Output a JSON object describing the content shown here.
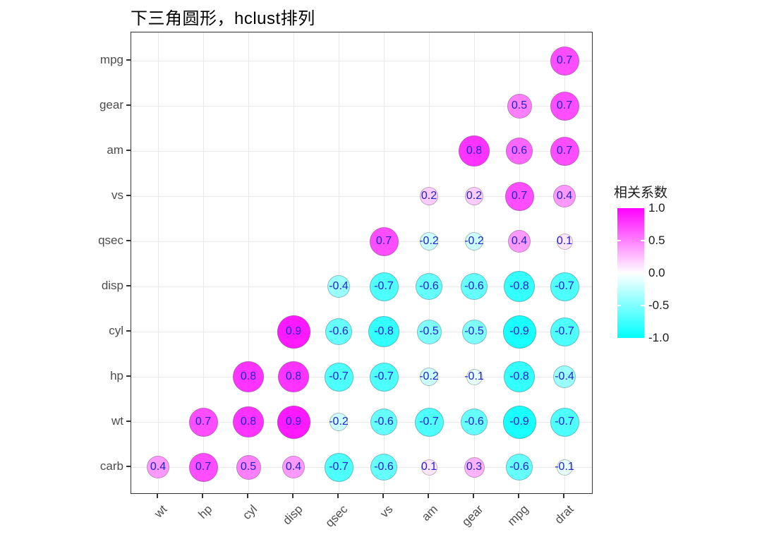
{
  "title": "下三角圆形，hclust排列",
  "chart_data": {
    "type": "heatmap",
    "subtype": "lower-triangle-correlation-circles",
    "title": "下三角圆形，hclust排列",
    "order_method": "hclust",
    "x_categories": [
      "wt",
      "hp",
      "cyl",
      "disp",
      "qsec",
      "vs",
      "am",
      "gear",
      "mpg",
      "drat"
    ],
    "y_categories": [
      "mpg",
      "gear",
      "am",
      "vs",
      "qsec",
      "disp",
      "cyl",
      "hp",
      "wt",
      "carb"
    ],
    "value_range": [
      -1,
      1
    ],
    "grid": true,
    "label_color": "#2222CC",
    "axis_text_color": "#4d4d4d",
    "cells": [
      {
        "row": "mpg",
        "col": "drat",
        "v": 0.7
      },
      {
        "row": "gear",
        "col": "mpg",
        "v": 0.5
      },
      {
        "row": "gear",
        "col": "drat",
        "v": 0.7
      },
      {
        "row": "am",
        "col": "gear",
        "v": 0.8
      },
      {
        "row": "am",
        "col": "mpg",
        "v": 0.6
      },
      {
        "row": "am",
        "col": "drat",
        "v": 0.7
      },
      {
        "row": "vs",
        "col": "am",
        "v": 0.2
      },
      {
        "row": "vs",
        "col": "gear",
        "v": 0.2
      },
      {
        "row": "vs",
        "col": "mpg",
        "v": 0.7
      },
      {
        "row": "vs",
        "col": "drat",
        "v": 0.4
      },
      {
        "row": "qsec",
        "col": "vs",
        "v": 0.7
      },
      {
        "row": "qsec",
        "col": "am",
        "v": -0.2
      },
      {
        "row": "qsec",
        "col": "gear",
        "v": -0.2
      },
      {
        "row": "qsec",
        "col": "mpg",
        "v": 0.4
      },
      {
        "row": "qsec",
        "col": "drat",
        "v": 0.1
      },
      {
        "row": "disp",
        "col": "qsec",
        "v": -0.4
      },
      {
        "row": "disp",
        "col": "vs",
        "v": -0.7
      },
      {
        "row": "disp",
        "col": "am",
        "v": -0.6
      },
      {
        "row": "disp",
        "col": "gear",
        "v": -0.6
      },
      {
        "row": "disp",
        "col": "mpg",
        "v": -0.8
      },
      {
        "row": "disp",
        "col": "drat",
        "v": -0.7
      },
      {
        "row": "cyl",
        "col": "disp",
        "v": 0.9
      },
      {
        "row": "cyl",
        "col": "qsec",
        "v": -0.6
      },
      {
        "row": "cyl",
        "col": "vs",
        "v": -0.8
      },
      {
        "row": "cyl",
        "col": "am",
        "v": -0.5
      },
      {
        "row": "cyl",
        "col": "gear",
        "v": -0.5
      },
      {
        "row": "cyl",
        "col": "mpg",
        "v": -0.9
      },
      {
        "row": "cyl",
        "col": "drat",
        "v": -0.7
      },
      {
        "row": "hp",
        "col": "cyl",
        "v": 0.8
      },
      {
        "row": "hp",
        "col": "disp",
        "v": 0.8
      },
      {
        "row": "hp",
        "col": "qsec",
        "v": -0.7
      },
      {
        "row": "hp",
        "col": "vs",
        "v": -0.7
      },
      {
        "row": "hp",
        "col": "am",
        "v": -0.2
      },
      {
        "row": "hp",
        "col": "gear",
        "v": -0.1
      },
      {
        "row": "hp",
        "col": "mpg",
        "v": -0.8
      },
      {
        "row": "hp",
        "col": "drat",
        "v": -0.4
      },
      {
        "row": "wt",
        "col": "hp",
        "v": 0.7
      },
      {
        "row": "wt",
        "col": "cyl",
        "v": 0.8
      },
      {
        "row": "wt",
        "col": "disp",
        "v": 0.9
      },
      {
        "row": "wt",
        "col": "qsec",
        "v": -0.2
      },
      {
        "row": "wt",
        "col": "vs",
        "v": -0.6
      },
      {
        "row": "wt",
        "col": "am",
        "v": -0.7
      },
      {
        "row": "wt",
        "col": "gear",
        "v": -0.6
      },
      {
        "row": "wt",
        "col": "mpg",
        "v": -0.9
      },
      {
        "row": "wt",
        "col": "drat",
        "v": -0.7
      },
      {
        "row": "carb",
        "col": "wt",
        "v": 0.4
      },
      {
        "row": "carb",
        "col": "hp",
        "v": 0.7
      },
      {
        "row": "carb",
        "col": "cyl",
        "v": 0.5
      },
      {
        "row": "carb",
        "col": "disp",
        "v": 0.4
      },
      {
        "row": "carb",
        "col": "qsec",
        "v": -0.7
      },
      {
        "row": "carb",
        "col": "vs",
        "v": -0.6
      },
      {
        "row": "carb",
        "col": "am",
        "v": 0.1
      },
      {
        "row": "carb",
        "col": "gear",
        "v": 0.3
      },
      {
        "row": "carb",
        "col": "mpg",
        "v": -0.6
      },
      {
        "row": "carb",
        "col": "drat",
        "v": -0.1
      }
    ],
    "legend": {
      "title": "相关系数",
      "position": "right",
      "tick_labels": [
        "1.0",
        "0.5",
        "0.0",
        "-0.5",
        "-1.0"
      ],
      "tick_values": [
        1.0,
        0.5,
        0.0,
        -0.5,
        -1.0
      ],
      "color_max": "#FF00FF",
      "color_mid": "#FFFFFF",
      "color_min": "#00FFFF"
    }
  }
}
